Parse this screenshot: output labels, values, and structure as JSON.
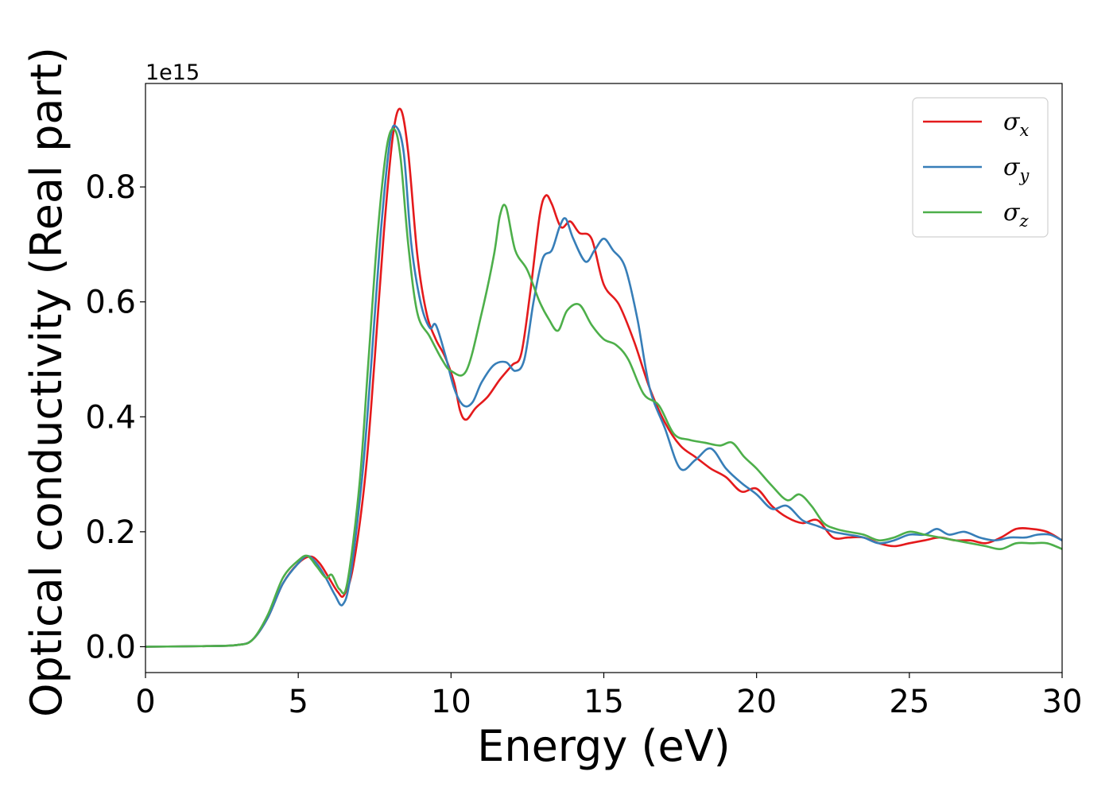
{
  "chart_data": {
    "type": "line",
    "title": "",
    "xlabel": "Energy (eV)",
    "ylabel": "Optical conductivity (Real part)",
    "y_offset_text": "1e15",
    "xlim": [
      0,
      30
    ],
    "ylim": [
      -0.045,
      0.98
    ],
    "y_scale_factor": "1e15",
    "xticks": [
      0,
      5,
      10,
      15,
      20,
      25,
      30
    ],
    "yticks": [
      0.0,
      0.2,
      0.4,
      0.6,
      0.8
    ],
    "xtick_labels": [
      "0",
      "5",
      "10",
      "15",
      "20",
      "25",
      "30"
    ],
    "ytick_labels": [
      "0.0",
      "0.2",
      "0.4",
      "0.6",
      "0.8"
    ],
    "grid": false,
    "legend_position": "top-right",
    "series": [
      {
        "name": "σx",
        "name_base": "σ",
        "name_sub": "x",
        "color": "#e41a1c",
        "points": [
          [
            0,
            0
          ],
          [
            2,
            0.001
          ],
          [
            3,
            0.003
          ],
          [
            3.5,
            0.012
          ],
          [
            4,
            0.05
          ],
          [
            4.5,
            0.11
          ],
          [
            5,
            0.145
          ],
          [
            5.4,
            0.157
          ],
          [
            5.7,
            0.145
          ],
          [
            6,
            0.12
          ],
          [
            6.3,
            0.095
          ],
          [
            6.5,
            0.09
          ],
          [
            6.8,
            0.14
          ],
          [
            7.2,
            0.3
          ],
          [
            7.5,
            0.5
          ],
          [
            7.8,
            0.72
          ],
          [
            8.1,
            0.89
          ],
          [
            8.35,
            0.935
          ],
          [
            8.6,
            0.86
          ],
          [
            8.9,
            0.68
          ],
          [
            9.2,
            0.58
          ],
          [
            9.5,
            0.535
          ],
          [
            9.8,
            0.505
          ],
          [
            10.1,
            0.46
          ],
          [
            10.3,
            0.41
          ],
          [
            10.5,
            0.395
          ],
          [
            10.8,
            0.415
          ],
          [
            11.2,
            0.435
          ],
          [
            11.6,
            0.465
          ],
          [
            12,
            0.49
          ],
          [
            12.3,
            0.51
          ],
          [
            12.6,
            0.62
          ],
          [
            12.9,
            0.75
          ],
          [
            13.1,
            0.785
          ],
          [
            13.3,
            0.77
          ],
          [
            13.6,
            0.73
          ],
          [
            13.9,
            0.74
          ],
          [
            14.2,
            0.72
          ],
          [
            14.6,
            0.71
          ],
          [
            15,
            0.63
          ],
          [
            15.5,
            0.595
          ],
          [
            16,
            0.53
          ],
          [
            16.5,
            0.45
          ],
          [
            17,
            0.39
          ],
          [
            17.5,
            0.35
          ],
          [
            18,
            0.33
          ],
          [
            18.5,
            0.31
          ],
          [
            19,
            0.295
          ],
          [
            19.5,
            0.27
          ],
          [
            20,
            0.275
          ],
          [
            20.5,
            0.245
          ],
          [
            21,
            0.225
          ],
          [
            21.5,
            0.215
          ],
          [
            22,
            0.22
          ],
          [
            22.5,
            0.19
          ],
          [
            23,
            0.19
          ],
          [
            23.5,
            0.19
          ],
          [
            24,
            0.18
          ],
          [
            24.5,
            0.175
          ],
          [
            25,
            0.18
          ],
          [
            25.5,
            0.185
          ],
          [
            26,
            0.19
          ],
          [
            26.5,
            0.185
          ],
          [
            27,
            0.185
          ],
          [
            27.5,
            0.18
          ],
          [
            28,
            0.19
          ],
          [
            28.5,
            0.205
          ],
          [
            29,
            0.205
          ],
          [
            29.5,
            0.2
          ],
          [
            30,
            0.185
          ]
        ]
      },
      {
        "name": "σy",
        "name_base": "σ",
        "name_sub": "y",
        "color": "#377eb8",
        "points": [
          [
            0,
            0
          ],
          [
            2,
            0.001
          ],
          [
            3,
            0.003
          ],
          [
            3.5,
            0.012
          ],
          [
            4,
            0.05
          ],
          [
            4.5,
            0.11
          ],
          [
            5,
            0.145
          ],
          [
            5.3,
            0.158
          ],
          [
            5.6,
            0.145
          ],
          [
            5.9,
            0.12
          ],
          [
            6.2,
            0.09
          ],
          [
            6.45,
            0.073
          ],
          [
            6.7,
            0.12
          ],
          [
            7.1,
            0.3
          ],
          [
            7.4,
            0.5
          ],
          [
            7.7,
            0.72
          ],
          [
            8.0,
            0.88
          ],
          [
            8.2,
            0.905
          ],
          [
            8.45,
            0.86
          ],
          [
            8.7,
            0.7
          ],
          [
            9.0,
            0.6
          ],
          [
            9.3,
            0.555
          ],
          [
            9.5,
            0.56
          ],
          [
            9.8,
            0.51
          ],
          [
            10.1,
            0.45
          ],
          [
            10.4,
            0.42
          ],
          [
            10.7,
            0.425
          ],
          [
            11.0,
            0.46
          ],
          [
            11.4,
            0.49
          ],
          [
            11.8,
            0.495
          ],
          [
            12.1,
            0.48
          ],
          [
            12.4,
            0.5
          ],
          [
            12.7,
            0.6
          ],
          [
            13.0,
            0.675
          ],
          [
            13.3,
            0.69
          ],
          [
            13.55,
            0.73
          ],
          [
            13.75,
            0.745
          ],
          [
            14.0,
            0.71
          ],
          [
            14.4,
            0.67
          ],
          [
            14.7,
            0.69
          ],
          [
            15.0,
            0.71
          ],
          [
            15.3,
            0.69
          ],
          [
            15.7,
            0.66
          ],
          [
            16.1,
            0.57
          ],
          [
            16.5,
            0.45
          ],
          [
            17.0,
            0.38
          ],
          [
            17.5,
            0.31
          ],
          [
            18.0,
            0.325
          ],
          [
            18.5,
            0.345
          ],
          [
            19.0,
            0.31
          ],
          [
            19.5,
            0.285
          ],
          [
            20.0,
            0.265
          ],
          [
            20.5,
            0.24
          ],
          [
            21.0,
            0.245
          ],
          [
            21.5,
            0.22
          ],
          [
            22.0,
            0.21
          ],
          [
            22.5,
            0.2
          ],
          [
            23.0,
            0.195
          ],
          [
            23.5,
            0.19
          ],
          [
            24.0,
            0.18
          ],
          [
            24.5,
            0.185
          ],
          [
            25.0,
            0.195
          ],
          [
            25.5,
            0.195
          ],
          [
            25.9,
            0.205
          ],
          [
            26.3,
            0.195
          ],
          [
            26.8,
            0.2
          ],
          [
            27.3,
            0.19
          ],
          [
            27.8,
            0.185
          ],
          [
            28.3,
            0.19
          ],
          [
            28.8,
            0.19
          ],
          [
            29.2,
            0.195
          ],
          [
            29.6,
            0.195
          ],
          [
            30,
            0.185
          ]
        ]
      },
      {
        "name": "σz",
        "name_base": "σ",
        "name_sub": "z",
        "color": "#4daf4a",
        "points": [
          [
            0,
            0
          ],
          [
            2,
            0.001
          ],
          [
            3,
            0.003
          ],
          [
            3.5,
            0.012
          ],
          [
            4,
            0.055
          ],
          [
            4.5,
            0.12
          ],
          [
            5,
            0.15
          ],
          [
            5.3,
            0.158
          ],
          [
            5.6,
            0.14
          ],
          [
            5.9,
            0.12
          ],
          [
            6.1,
            0.125
          ],
          [
            6.35,
            0.1
          ],
          [
            6.6,
            0.11
          ],
          [
            7.0,
            0.28
          ],
          [
            7.3,
            0.5
          ],
          [
            7.6,
            0.72
          ],
          [
            7.9,
            0.87
          ],
          [
            8.15,
            0.9
          ],
          [
            8.35,
            0.85
          ],
          [
            8.6,
            0.7
          ],
          [
            8.9,
            0.58
          ],
          [
            9.3,
            0.54
          ],
          [
            9.7,
            0.5
          ],
          [
            10.0,
            0.48
          ],
          [
            10.5,
            0.48
          ],
          [
            11.0,
            0.58
          ],
          [
            11.4,
            0.68
          ],
          [
            11.6,
            0.75
          ],
          [
            11.8,
            0.765
          ],
          [
            12.1,
            0.69
          ],
          [
            12.5,
            0.655
          ],
          [
            12.9,
            0.6
          ],
          [
            13.2,
            0.57
          ],
          [
            13.5,
            0.55
          ],
          [
            13.8,
            0.585
          ],
          [
            14.2,
            0.595
          ],
          [
            14.6,
            0.56
          ],
          [
            15.0,
            0.535
          ],
          [
            15.4,
            0.525
          ],
          [
            15.8,
            0.5
          ],
          [
            16.3,
            0.44
          ],
          [
            16.8,
            0.42
          ],
          [
            17.3,
            0.37
          ],
          [
            17.8,
            0.36
          ],
          [
            18.3,
            0.355
          ],
          [
            18.8,
            0.35
          ],
          [
            19.2,
            0.355
          ],
          [
            19.6,
            0.33
          ],
          [
            20.0,
            0.31
          ],
          [
            20.5,
            0.28
          ],
          [
            21.0,
            0.255
          ],
          [
            21.4,
            0.265
          ],
          [
            21.8,
            0.245
          ],
          [
            22.2,
            0.215
          ],
          [
            22.6,
            0.205
          ],
          [
            23.0,
            0.2
          ],
          [
            23.5,
            0.195
          ],
          [
            24.0,
            0.185
          ],
          [
            24.5,
            0.19
          ],
          [
            25.0,
            0.2
          ],
          [
            25.5,
            0.195
          ],
          [
            26.0,
            0.19
          ],
          [
            26.5,
            0.185
          ],
          [
            27.0,
            0.18
          ],
          [
            27.5,
            0.175
          ],
          [
            28.0,
            0.17
          ],
          [
            28.5,
            0.18
          ],
          [
            29.0,
            0.18
          ],
          [
            29.5,
            0.18
          ],
          [
            30,
            0.17
          ]
        ]
      }
    ]
  }
}
